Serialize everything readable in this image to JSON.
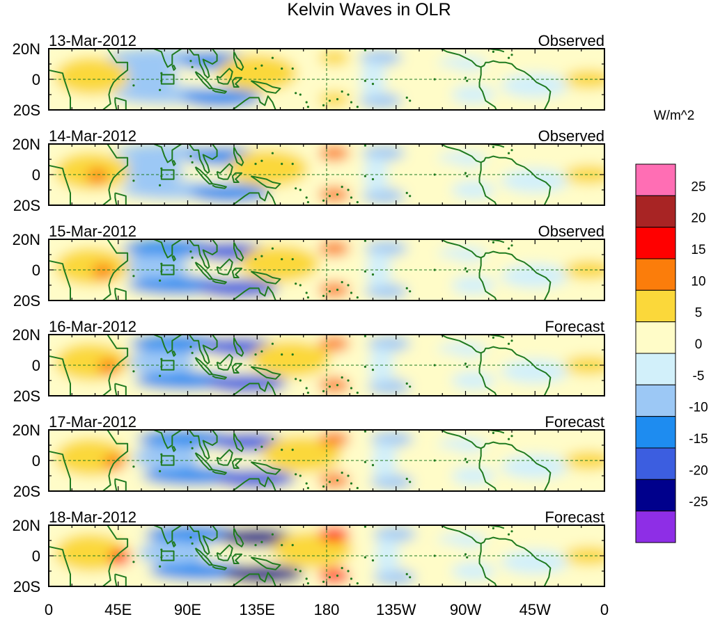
{
  "title": "Kelvin Waves in OLR",
  "units": "W/m^2",
  "lat_labels": [
    "20N",
    "0",
    "20S"
  ],
  "lon_labels": [
    "0",
    "45E",
    "90E",
    "135E",
    "180",
    "135W",
    "90W",
    "45W",
    "0"
  ],
  "panels": [
    {
      "date": "13-Mar-2012",
      "kind": "Observed",
      "strength": 0.55,
      "phase": 0
    },
    {
      "date": "14-Mar-2012",
      "kind": "Observed",
      "strength": 0.75,
      "phase": 1
    },
    {
      "date": "15-Mar-2012",
      "kind": "Observed",
      "strength": 0.95,
      "phase": 2
    },
    {
      "date": "16-Mar-2012",
      "kind": "Forecast",
      "strength": 1.05,
      "phase": 3
    },
    {
      "date": "17-Mar-2012",
      "kind": "Forecast",
      "strength": 1.15,
      "phase": 4
    },
    {
      "date": "18-Mar-2012",
      "kind": "Forecast",
      "strength": 1.25,
      "phase": 5
    }
  ],
  "colorbar": {
    "colors": [
      "#8e2ee6",
      "#00008c",
      "#3c5ee0",
      "#1e8cf0",
      "#9cc8f5",
      "#d2f0fa",
      "#fffcc8",
      "#fbd83a",
      "#fb7d0b",
      "#ff0000",
      "#a82424",
      "#ff6eb4"
    ],
    "labels": [
      "-25",
      "-20",
      "-15",
      "-10",
      "-5",
      "0",
      "5",
      "10",
      "15",
      "20",
      "25"
    ]
  },
  "chart_data": {
    "type": "heatmap",
    "title": "Kelvin Waves in OLR",
    "units": "W/m^2",
    "levels": [
      -25,
      -20,
      -15,
      -10,
      -5,
      0,
      5,
      10,
      15,
      20,
      25
    ],
    "x_ticks": [
      "0",
      "45E",
      "90E",
      "135E",
      "180",
      "135W",
      "90W",
      "45W",
      "0"
    ],
    "y_ticks": [
      "20N",
      "0",
      "20S"
    ],
    "dates": [
      "13-Mar-2012",
      "14-Mar-2012",
      "15-Mar-2012",
      "16-Mar-2012",
      "17-Mar-2012",
      "18-Mar-2012"
    ]
  }
}
